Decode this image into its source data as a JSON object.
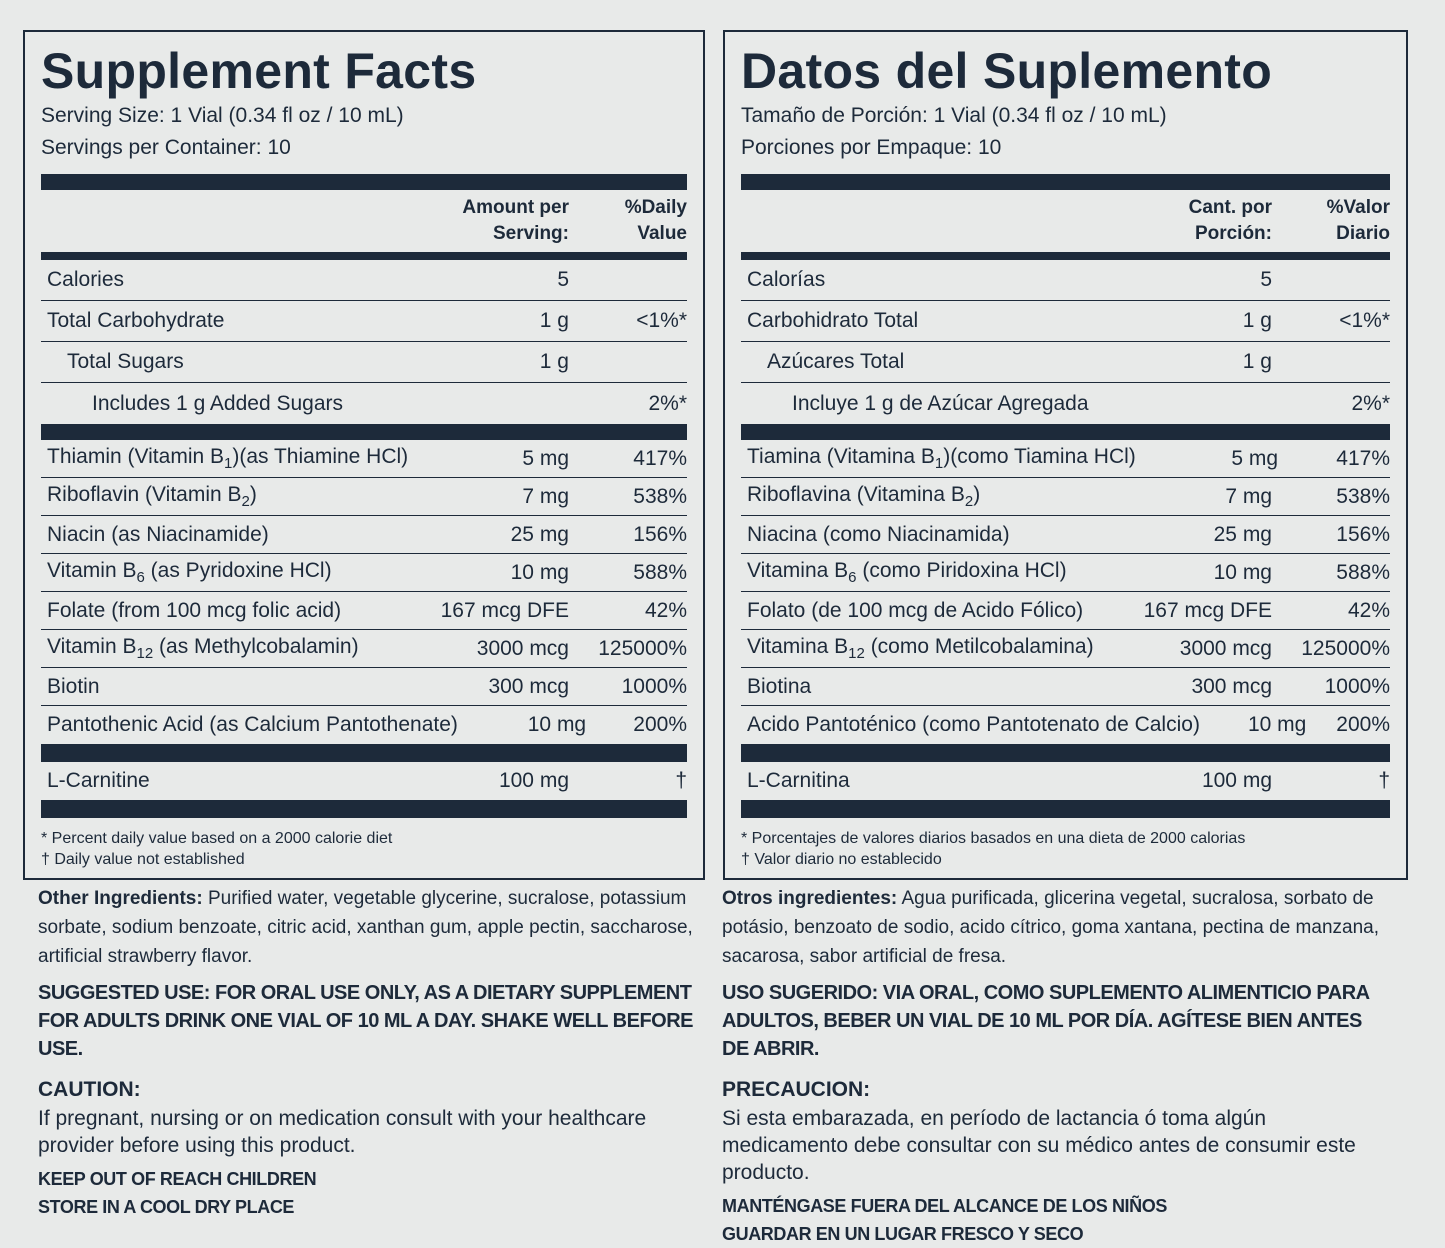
{
  "panels": [
    {
      "title": "Supplement Facts",
      "serving_size": "Serving Size: 1 Vial (0.34 fl oz / 10 mL)",
      "servings": "Servings per Container: 10",
      "col_amount": "Amount per Serving:",
      "col_dv": "%Daily Value",
      "macros": [
        {
          "name": "Calories",
          "amount": "5"
        },
        {
          "name": "Total Carbohydrate",
          "amount": "1 g",
          "dv": "<1%*"
        },
        {
          "name": "Total Sugars",
          "amount": "1 g",
          "level": 1
        },
        {
          "name": "Includes 1 g Added Sugars",
          "dv": "2%*",
          "level": 2
        }
      ],
      "vitamins": [
        {
          "name": [
            "Thiamin (Vitamin B",
            "1",
            ")(as Thiamine HCl)"
          ],
          "amount": "5 mg",
          "dv": "417%"
        },
        {
          "name": [
            "Riboflavin (Vitamin B",
            "2",
            ")"
          ],
          "amount": "7 mg",
          "dv": "538%"
        },
        {
          "name": "Niacin (as Niacinamide)",
          "amount": "25 mg",
          "dv": "156%"
        },
        {
          "name": [
            "Vitamin B",
            "6",
            " (as Pyridoxine HCl)"
          ],
          "amount": "10 mg",
          "dv": "588%"
        },
        {
          "name": "Folate (from 100 mcg folic acid)",
          "amount": "167 mcg DFE",
          "dv": "42%"
        },
        {
          "name": [
            "Vitamin B",
            "12",
            " (as Methylcobalamin)"
          ],
          "amount": "3000 mcg",
          "dv": "125000%"
        },
        {
          "name": "Biotin",
          "amount": "300 mcg",
          "dv": "1000%"
        },
        {
          "name": "Pantothenic Acid (as Calcium Pantothenate)",
          "amount": "10 mg",
          "dv": "200%"
        }
      ],
      "others": [
        {
          "name": "L-Carnitine",
          "amount": "100 mg",
          "dv": "†"
        }
      ],
      "footnotes": [
        "* Percent daily value based on a 2000 calorie diet",
        "† Daily value not established"
      ],
      "ingredients": {
        "label": "Other Ingredients:",
        "text": "Purified water, vegetable glycerine, sucralose, potassium sorbate, sodium benzoate, citric acid, xanthan gum, apple pectin, saccharose, artificial strawberry flavor."
      },
      "suggested_use": "SUGGESTED USE:  FOR ORAL USE ONLY, AS A DIETARY SUPPLEMENT FOR ADULTS DRINK ONE VIAL OF 10 ML A DAY.  SHAKE WELL BEFORE USE.",
      "caution": {
        "heading": "CAUTION:",
        "text": "If pregnant, nursing or on medication consult with your healthcare provider before using this product."
      },
      "warnings": [
        "KEEP OUT OF REACH CHILDREN",
        "STORE IN A COOL DRY PLACE"
      ]
    },
    {
      "title": "Datos del Suplemento",
      "serving_size": "Tamaño de Porción: 1 Vial (0.34 fl oz / 10 mL)",
      "servings": "Porciones por Empaque: 10",
      "col_amount": "Cant. por Porción:",
      "col_dv": "%Valor Diario",
      "macros": [
        {
          "name": "Calorías",
          "amount": "5"
        },
        {
          "name": "Carbohidrato Total",
          "amount": "1 g",
          "dv": "<1%*"
        },
        {
          "name": "Azúcares Total",
          "amount": "1 g",
          "level": 1
        },
        {
          "name": "Incluye 1 g de Azúcar Agregada",
          "dv": "2%*",
          "level": 2
        }
      ],
      "vitamins": [
        {
          "name": [
            "Tiamina (Vitamina B",
            "1",
            ")(como Tiamina HCl)"
          ],
          "amount": "5 mg",
          "dv": "417%"
        },
        {
          "name": [
            "Riboflavina (Vitamina B",
            "2",
            ")"
          ],
          "amount": "7 mg",
          "dv": "538%"
        },
        {
          "name": "Niacina (como Niacinamida)",
          "amount": "25 mg",
          "dv": "156%"
        },
        {
          "name": [
            "Vitamina B",
            "6",
            " (como Piridoxina HCl)"
          ],
          "amount": "10 mg",
          "dv": "588%"
        },
        {
          "name": "Folato (de 100 mcg de Acido Fólico)",
          "amount": "167 mcg DFE",
          "dv": "42%"
        },
        {
          "name": [
            "Vitamina B",
            "12",
            " (como Metilcobalamina)"
          ],
          "amount": "3000 mcg",
          "dv": "125000%"
        },
        {
          "name": "Biotina",
          "amount": "300 mcg",
          "dv": "1000%"
        },
        {
          "name": "Acido Pantoténico (como Pantotenato de Calcio)",
          "amount": "10 mg",
          "dv": "200%"
        }
      ],
      "others": [
        {
          "name": "L-Carnitina",
          "amount": "100 mg",
          "dv": "†"
        }
      ],
      "footnotes": [
        "* Porcentajes de valores diarios basados en una dieta de 2000 calorias",
        "† Valor diario no establecido"
      ],
      "ingredients": {
        "label": "Otros ingredientes:",
        "text": "Agua purificada, glicerina vegetal, sucralosa, sorbato de potásio, benzoato de sodio, acido cítrico, goma xantana, pectina de manzana, sacarosa, sabor artificial de fresa."
      },
      "suggested_use": "USO SUGERIDO: VIA ORAL, COMO SUPLEMENTO ALIMENTICIO PARA ADULTOS, BEBER UN VIAL DE 10 ML POR DÍA.  AGÍTESE BIEN ANTES DE ABRIR.",
      "caution": {
        "heading": "PRECAUCION:",
        "text": "Si esta embarazada, en período de lactancia ó toma algún medicamento debe consultar con su médico antes de consumir este producto."
      },
      "warnings": [
        "MANTÉNGASE FUERA DEL ALCANCE DE LOS NIÑOS",
        "GUARDAR EN UN LUGAR FRESCO Y SECO"
      ]
    }
  ]
}
